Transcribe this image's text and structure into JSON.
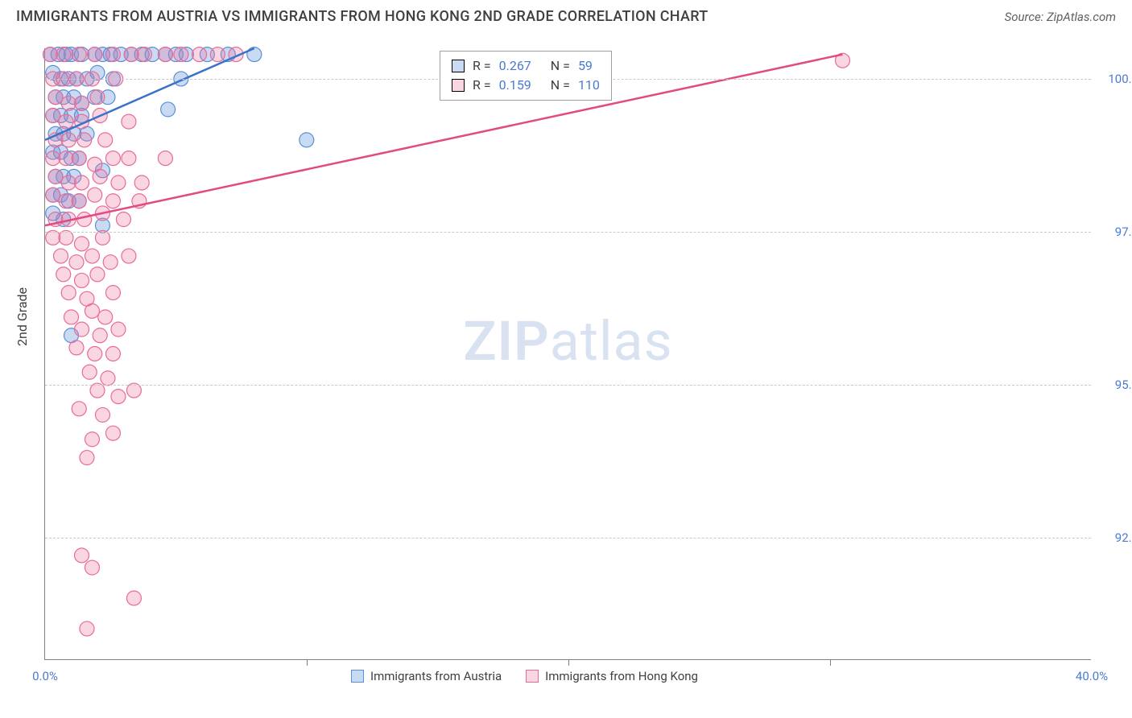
{
  "header": {
    "title": "IMMIGRANTS FROM AUSTRIA VS IMMIGRANTS FROM HONG KONG 2ND GRADE CORRELATION CHART",
    "source_label": "Source:",
    "source_value": "ZipAtlas.com"
  },
  "chart": {
    "type": "scatter",
    "ylabel": "2nd Grade",
    "watermark_bold": "ZIP",
    "watermark_rest": "atlas",
    "xlim": [
      0,
      40
    ],
    "ylim": [
      90.5,
      100.5
    ],
    "xtick_labels": [
      "0.0%",
      "40.0%"
    ],
    "xtick_positions": [
      0,
      40
    ],
    "xtick_minor": [
      10,
      20,
      30
    ],
    "ytick_labels": [
      "92.5%",
      "95.0%",
      "97.5%",
      "100.0%"
    ],
    "ytick_positions": [
      92.5,
      95.0,
      97.5,
      100.0
    ],
    "grid_color": "#c9c9c9",
    "background_color": "#ffffff",
    "series": [
      {
        "name": "Immigrants from Austria",
        "fill": "rgba(100,150,220,0.35)",
        "stroke": "#5a8fd6",
        "trend_stroke": "#3a73c9",
        "r_label": "R =",
        "r_value": "0.267",
        "n_label": "N =",
        "n_value": "59",
        "trendline": {
          "x1": 0,
          "y1": 99.0,
          "x2": 8.0,
          "y2": 100.5
        },
        "points": [
          [
            0.2,
            100.4
          ],
          [
            0.5,
            100.4
          ],
          [
            0.8,
            100.4
          ],
          [
            1.0,
            100.4
          ],
          [
            1.4,
            100.4
          ],
          [
            1.9,
            100.4
          ],
          [
            2.2,
            100.4
          ],
          [
            2.5,
            100.4
          ],
          [
            2.9,
            100.4
          ],
          [
            3.3,
            100.4
          ],
          [
            3.7,
            100.4
          ],
          [
            4.1,
            100.4
          ],
          [
            4.6,
            100.4
          ],
          [
            5.0,
            100.4
          ],
          [
            5.4,
            100.4
          ],
          [
            6.2,
            100.4
          ],
          [
            7.0,
            100.4
          ],
          [
            8.0,
            100.4
          ],
          [
            0.3,
            100.1
          ],
          [
            0.6,
            100.0
          ],
          [
            0.9,
            100.0
          ],
          [
            1.2,
            100.0
          ],
          [
            1.6,
            100.0
          ],
          [
            2.0,
            100.1
          ],
          [
            2.6,
            100.0
          ],
          [
            5.2,
            100.0
          ],
          [
            0.4,
            99.7
          ],
          [
            0.7,
            99.7
          ],
          [
            1.1,
            99.7
          ],
          [
            1.4,
            99.6
          ],
          [
            1.9,
            99.7
          ],
          [
            2.4,
            99.7
          ],
          [
            0.3,
            99.4
          ],
          [
            0.6,
            99.4
          ],
          [
            1.0,
            99.4
          ],
          [
            1.4,
            99.4
          ],
          [
            0.4,
            99.1
          ],
          [
            0.7,
            99.1
          ],
          [
            1.1,
            99.1
          ],
          [
            1.6,
            99.1
          ],
          [
            4.7,
            99.5
          ],
          [
            0.3,
            98.8
          ],
          [
            0.6,
            98.8
          ],
          [
            1.0,
            98.7
          ],
          [
            1.3,
            98.7
          ],
          [
            0.4,
            98.4
          ],
          [
            0.7,
            98.4
          ],
          [
            1.1,
            98.4
          ],
          [
            2.2,
            98.5
          ],
          [
            0.3,
            98.1
          ],
          [
            0.6,
            98.1
          ],
          [
            0.9,
            98.0
          ],
          [
            1.3,
            98.0
          ],
          [
            0.3,
            97.8
          ],
          [
            0.7,
            97.7
          ],
          [
            2.2,
            97.6
          ],
          [
            10.0,
            99.0
          ],
          [
            1.0,
            95.8
          ]
        ]
      },
      {
        "name": "Immigrants from Hong Kong",
        "fill": "rgba(235,120,160,0.3)",
        "stroke": "#e86b9a",
        "trend_stroke": "#e24b82",
        "r_label": "R =",
        "r_value": "0.159",
        "n_label": "N =",
        "n_value": "110",
        "trendline": {
          "x1": 0,
          "y1": 97.6,
          "x2": 30.5,
          "y2": 100.4
        },
        "points": [
          [
            0.2,
            100.4
          ],
          [
            0.7,
            100.4
          ],
          [
            1.3,
            100.4
          ],
          [
            1.9,
            100.4
          ],
          [
            2.6,
            100.4
          ],
          [
            3.3,
            100.4
          ],
          [
            3.8,
            100.4
          ],
          [
            4.6,
            100.4
          ],
          [
            5.2,
            100.4
          ],
          [
            5.9,
            100.4
          ],
          [
            6.6,
            100.4
          ],
          [
            7.3,
            100.4
          ],
          [
            0.3,
            100.0
          ],
          [
            0.7,
            100.0
          ],
          [
            1.2,
            100.0
          ],
          [
            1.8,
            100.0
          ],
          [
            2.7,
            100.0
          ],
          [
            0.4,
            99.7
          ],
          [
            0.9,
            99.6
          ],
          [
            1.4,
            99.6
          ],
          [
            2.0,
            99.7
          ],
          [
            0.3,
            99.4
          ],
          [
            0.8,
            99.3
          ],
          [
            1.4,
            99.3
          ],
          [
            2.1,
            99.4
          ],
          [
            3.2,
            99.3
          ],
          [
            0.4,
            99.0
          ],
          [
            0.9,
            99.0
          ],
          [
            1.5,
            99.0
          ],
          [
            2.3,
            99.0
          ],
          [
            0.3,
            98.7
          ],
          [
            0.8,
            98.7
          ],
          [
            1.3,
            98.7
          ],
          [
            1.9,
            98.6
          ],
          [
            2.6,
            98.7
          ],
          [
            3.2,
            98.7
          ],
          [
            4.6,
            98.7
          ],
          [
            0.4,
            98.4
          ],
          [
            0.9,
            98.3
          ],
          [
            1.4,
            98.3
          ],
          [
            2.1,
            98.4
          ],
          [
            2.8,
            98.3
          ],
          [
            3.7,
            98.3
          ],
          [
            0.3,
            98.1
          ],
          [
            0.8,
            98.0
          ],
          [
            1.3,
            98.0
          ],
          [
            1.9,
            98.1
          ],
          [
            2.6,
            98.0
          ],
          [
            3.6,
            98.0
          ],
          [
            0.4,
            97.7
          ],
          [
            0.9,
            97.7
          ],
          [
            1.5,
            97.7
          ],
          [
            2.2,
            97.8
          ],
          [
            3.0,
            97.7
          ],
          [
            0.3,
            97.4
          ],
          [
            0.8,
            97.4
          ],
          [
            1.4,
            97.3
          ],
          [
            2.2,
            97.4
          ],
          [
            0.6,
            97.1
          ],
          [
            1.2,
            97.0
          ],
          [
            1.8,
            97.1
          ],
          [
            2.5,
            97.0
          ],
          [
            3.2,
            97.1
          ],
          [
            0.7,
            96.8
          ],
          [
            1.4,
            96.7
          ],
          [
            2.0,
            96.8
          ],
          [
            0.9,
            96.5
          ],
          [
            1.6,
            96.4
          ],
          [
            2.6,
            96.5
          ],
          [
            1.0,
            96.1
          ],
          [
            1.8,
            96.2
          ],
          [
            2.3,
            96.1
          ],
          [
            1.4,
            95.9
          ],
          [
            2.1,
            95.8
          ],
          [
            2.8,
            95.9
          ],
          [
            1.2,
            95.6
          ],
          [
            1.9,
            95.5
          ],
          [
            2.6,
            95.5
          ],
          [
            1.7,
            95.2
          ],
          [
            2.4,
            95.1
          ],
          [
            2.0,
            94.9
          ],
          [
            2.8,
            94.8
          ],
          [
            3.4,
            94.9
          ],
          [
            1.3,
            94.6
          ],
          [
            2.2,
            94.5
          ],
          [
            2.6,
            94.2
          ],
          [
            1.8,
            94.1
          ],
          [
            1.6,
            93.8
          ],
          [
            1.4,
            92.2
          ],
          [
            1.8,
            92.0
          ],
          [
            3.4,
            91.5
          ],
          [
            1.6,
            91.0
          ],
          [
            30.5,
            100.3
          ]
        ]
      }
    ]
  },
  "bottom_legend": [
    {
      "label": "Immigrants from Austria",
      "swatch_class": "sw-blue"
    },
    {
      "label": "Immigrants from Hong Kong",
      "swatch_class": "sw-pink"
    }
  ]
}
